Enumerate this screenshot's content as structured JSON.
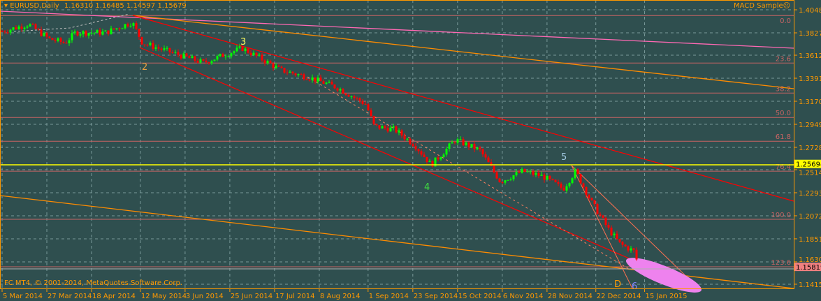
{
  "header": {
    "symbol": "EURUSD,Daily",
    "ohlc": "1.16310 1.16485 1.14597 1.15679",
    "indicator": "MACD Sample",
    "indicator_icon": "smiley-icon"
  },
  "footer": {
    "copyright": "FC MT4, © 2001-2014, MetaQuotes Software Corp."
  },
  "colors": {
    "background": "#2f4f4f",
    "axis": "#ff9900",
    "bull": "#00ff00",
    "bear": "#ff0000",
    "fib": "#c86464",
    "highlight": "#ffff00",
    "bid": "#f08080"
  },
  "chart_data": {
    "type": "candlestick",
    "title": "EURUSD,Daily",
    "ylim": [
      1.1375,
      1.4142
    ],
    "y_ticks": [
      "1.40480",
      "1.38270",
      "1.36125",
      "1.33915",
      "1.31705",
      "1.29495",
      "1.27285",
      "1.25140",
      "1.22930",
      "1.20720",
      "1.18510",
      "1.16300",
      "1.14155"
    ],
    "x_ticks": [
      {
        "date": "2014-03-05",
        "label": "5 Mar 2014"
      },
      {
        "date": "2014-03-27",
        "label": "27 Mar 2014"
      },
      {
        "date": "2014-04-18",
        "label": "18 Apr 2014"
      },
      {
        "date": "2014-05-12",
        "label": "12 May 2014"
      },
      {
        "date": "2014-06-03",
        "label": "3 Jun 2014"
      },
      {
        "date": "2014-06-25",
        "label": "25 Jun 2014"
      },
      {
        "date": "2014-07-17",
        "label": "17 Jul 2014"
      },
      {
        "date": "2014-08-08",
        "label": "8 Aug 2014"
      },
      {
        "date": "2014-09-01",
        "label": "1 Sep 2014"
      },
      {
        "date": "2014-09-23",
        "label": "23 Sep 2014"
      },
      {
        "date": "2014-10-15",
        "label": "15 Oct 2014"
      },
      {
        "date": "2014-11-06",
        "label": "6 Nov 2014"
      },
      {
        "date": "2014-11-28",
        "label": "28 Nov 2014"
      },
      {
        "date": "2014-12-22",
        "label": "22 Dec 2014"
      },
      {
        "date": "2015-01-15",
        "label": "15 Jan 2015"
      }
    ],
    "approx_closes": [
      [
        "2014-03-05",
        1.384
      ],
      [
        "2014-03-18",
        1.391
      ],
      [
        "2014-03-28",
        1.377
      ],
      [
        "2014-04-05",
        1.373
      ],
      [
        "2014-04-10",
        1.383
      ],
      [
        "2014-04-25",
        1.383
      ],
      [
        "2014-05-08",
        1.393
      ],
      [
        "2014-05-13",
        1.373
      ],
      [
        "2014-05-27",
        1.364
      ],
      [
        "2014-06-12",
        1.354
      ],
      [
        "2014-07-01",
        1.368
      ],
      [
        "2014-07-13",
        1.355
      ],
      [
        "2014-07-20",
        1.347
      ],
      [
        "2014-08-03",
        1.34
      ],
      [
        "2014-08-17",
        1.33
      ],
      [
        "2014-08-31",
        1.314
      ],
      [
        "2014-09-04",
        1.293
      ],
      [
        "2014-09-14",
        1.29
      ],
      [
        "2014-09-24",
        1.275
      ],
      [
        "2014-10-02",
        1.256
      ],
      [
        "2014-10-14",
        1.28
      ],
      [
        "2014-10-26",
        1.27
      ],
      [
        "2014-11-05",
        1.24
      ],
      [
        "2014-11-16",
        1.25
      ],
      [
        "2014-11-26",
        1.245
      ],
      [
        "2014-12-06",
        1.233
      ],
      [
        "2014-12-12",
        1.25
      ],
      [
        "2014-12-20",
        1.22
      ],
      [
        "2014-12-28",
        1.195
      ],
      [
        "2015-01-03",
        1.18
      ],
      [
        "2015-01-10",
        1.173
      ],
      [
        "2015-01-12",
        1.158
      ]
    ],
    "fib_levels": [
      {
        "label": "0.0",
        "price": 1.3993
      },
      {
        "label": "23.6",
        "price": 1.3537
      },
      {
        "label": "38.2",
        "price": 1.3249
      },
      {
        "label": "50.0",
        "price": 1.3015
      },
      {
        "label": "61.8",
        "price": 1.2787
      },
      {
        "label": "76.4",
        "price": 1.25
      },
      {
        "label": "100.0",
        "price": 1.2038
      },
      {
        "label": "123.6",
        "price": 1.1583
      }
    ],
    "highlight_price": "1.25694",
    "bid_price": "1.15819",
    "wave_labels": [
      {
        "text": "2",
        "color": "#e8a040"
      },
      {
        "text": "3",
        "color": "#ffff60"
      },
      {
        "text": "4",
        "color": "#40e040"
      },
      {
        "text": "5",
        "color": "#a0c8e0"
      },
      {
        "text": "D",
        "color": "#ff9900"
      },
      {
        "text": "6",
        "color": "#8080ff"
      }
    ]
  }
}
